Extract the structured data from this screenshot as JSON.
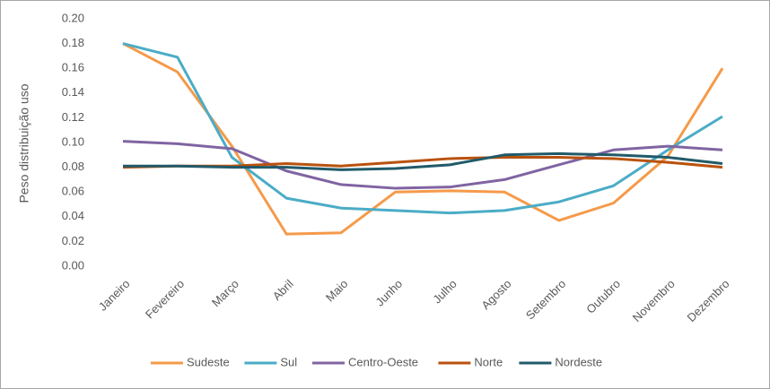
{
  "chart_data": {
    "type": "line",
    "y_label": "Peso distribuição uso",
    "categories": [
      "Janeiro",
      "Fevereiro",
      "Março",
      "Abril",
      "Maio",
      "Junho",
      "Julho",
      "Agosto",
      "Setembro",
      "Outubro",
      "Novembro",
      "Dezembro"
    ],
    "series": [
      {
        "name": "Sudeste",
        "color": "#f59a4a",
        "values": [
          0.18,
          0.157,
          0.097,
          0.026,
          0.027,
          0.06,
          0.061,
          0.06,
          0.037,
          0.051,
          0.089,
          0.16
        ]
      },
      {
        "name": "Sul",
        "color": "#4bacc6",
        "values": [
          0.18,
          0.169,
          0.088,
          0.055,
          0.047,
          0.045,
          0.043,
          0.045,
          0.052,
          0.065,
          0.094,
          0.121
        ]
      },
      {
        "name": "Centro-Oeste",
        "color": "#8064a2",
        "values": [
          0.101,
          0.099,
          0.095,
          0.077,
          0.066,
          0.063,
          0.064,
          0.07,
          0.082,
          0.094,
          0.097,
          0.094
        ]
      },
      {
        "name": "Norte",
        "color": "#b9520e",
        "values": [
          0.08,
          0.081,
          0.081,
          0.083,
          0.081,
          0.084,
          0.087,
          0.088,
          0.088,
          0.087,
          0.084,
          0.08
        ]
      },
      {
        "name": "Nordeste",
        "color": "#215a69",
        "values": [
          0.081,
          0.081,
          0.08,
          0.08,
          0.078,
          0.079,
          0.082,
          0.09,
          0.091,
          0.09,
          0.088,
          0.083
        ]
      }
    ],
    "ylim": [
      0,
      0.2
    ],
    "yticks": [
      {
        "value": 0,
        "label": "0.00"
      },
      0.02,
      0.04,
      0.06,
      0.08,
      {
        "value": 0.1,
        "label": "0.10"
      },
      0.12,
      0.14,
      0.16,
      0.18,
      {
        "value": 0.2,
        "label": "0.20"
      }
    ],
    "legend": "bottom"
  }
}
